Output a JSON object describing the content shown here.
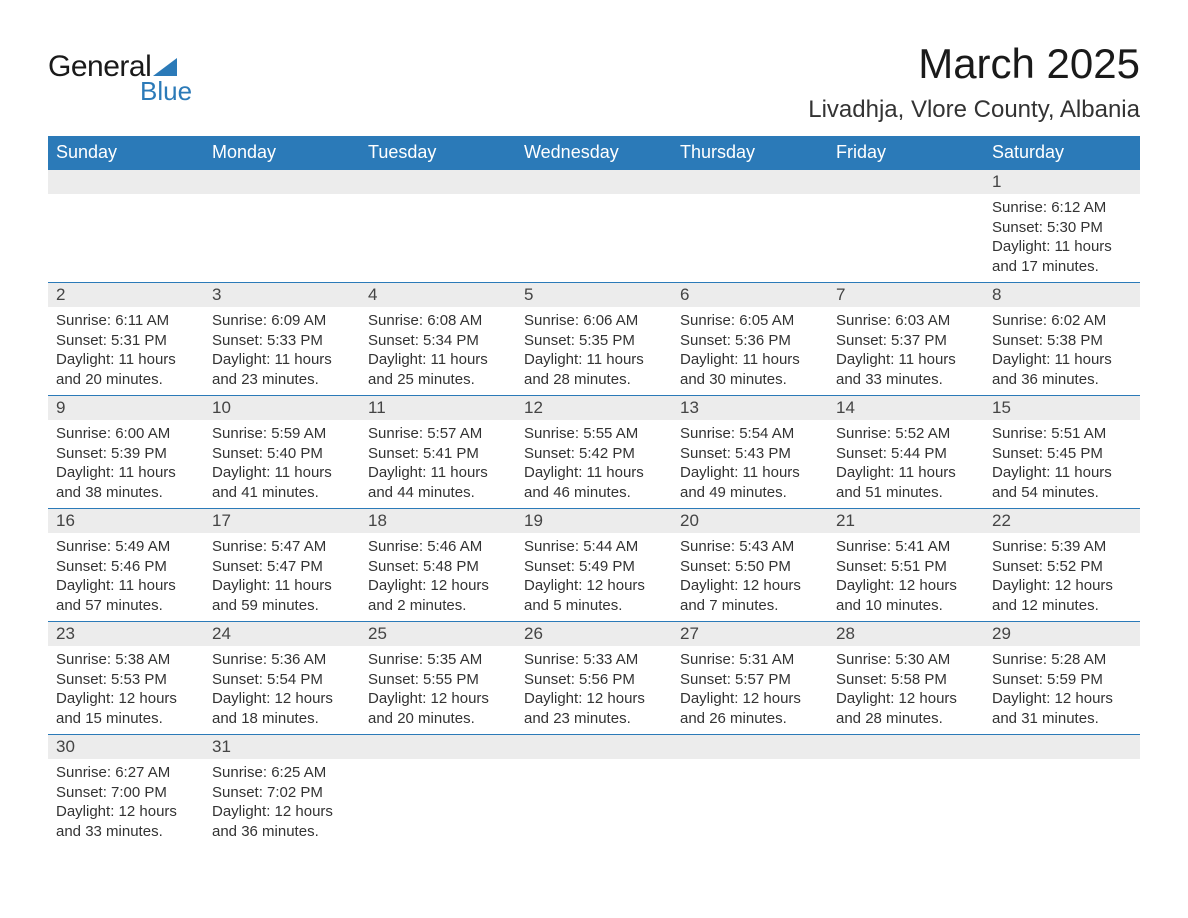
{
  "logo": {
    "text1": "General",
    "text2": "Blue",
    "accent_color": "#2b7ab8"
  },
  "title": "March 2025",
  "location": "Livadhja, Vlore County, Albania",
  "colors": {
    "header_bg": "#2b7ab8",
    "header_fg": "#ffffff",
    "daynum_bg": "#ececec",
    "border": "#2b7ab8",
    "text": "#333333",
    "page_bg": "#ffffff"
  },
  "typography": {
    "title_fontsize": 42,
    "location_fontsize": 24,
    "weekday_fontsize": 18,
    "daynum_fontsize": 17,
    "detail_fontsize": 15
  },
  "layout": {
    "type": "calendar-grid",
    "columns": 7,
    "visible_weeks": 6
  },
  "weekdays": [
    "Sunday",
    "Monday",
    "Tuesday",
    "Wednesday",
    "Thursday",
    "Friday",
    "Saturday"
  ],
  "weeks": [
    [
      null,
      null,
      null,
      null,
      null,
      null,
      {
        "d": "1",
        "sr": "6:12 AM",
        "ss": "5:30 PM",
        "dl": "11 hours and 17 minutes."
      }
    ],
    [
      {
        "d": "2",
        "sr": "6:11 AM",
        "ss": "5:31 PM",
        "dl": "11 hours and 20 minutes."
      },
      {
        "d": "3",
        "sr": "6:09 AM",
        "ss": "5:33 PM",
        "dl": "11 hours and 23 minutes."
      },
      {
        "d": "4",
        "sr": "6:08 AM",
        "ss": "5:34 PM",
        "dl": "11 hours and 25 minutes."
      },
      {
        "d": "5",
        "sr": "6:06 AM",
        "ss": "5:35 PM",
        "dl": "11 hours and 28 minutes."
      },
      {
        "d": "6",
        "sr": "6:05 AM",
        "ss": "5:36 PM",
        "dl": "11 hours and 30 minutes."
      },
      {
        "d": "7",
        "sr": "6:03 AM",
        "ss": "5:37 PM",
        "dl": "11 hours and 33 minutes."
      },
      {
        "d": "8",
        "sr": "6:02 AM",
        "ss": "5:38 PM",
        "dl": "11 hours and 36 minutes."
      }
    ],
    [
      {
        "d": "9",
        "sr": "6:00 AM",
        "ss": "5:39 PM",
        "dl": "11 hours and 38 minutes."
      },
      {
        "d": "10",
        "sr": "5:59 AM",
        "ss": "5:40 PM",
        "dl": "11 hours and 41 minutes."
      },
      {
        "d": "11",
        "sr": "5:57 AM",
        "ss": "5:41 PM",
        "dl": "11 hours and 44 minutes."
      },
      {
        "d": "12",
        "sr": "5:55 AM",
        "ss": "5:42 PM",
        "dl": "11 hours and 46 minutes."
      },
      {
        "d": "13",
        "sr": "5:54 AM",
        "ss": "5:43 PM",
        "dl": "11 hours and 49 minutes."
      },
      {
        "d": "14",
        "sr": "5:52 AM",
        "ss": "5:44 PM",
        "dl": "11 hours and 51 minutes."
      },
      {
        "d": "15",
        "sr": "5:51 AM",
        "ss": "5:45 PM",
        "dl": "11 hours and 54 minutes."
      }
    ],
    [
      {
        "d": "16",
        "sr": "5:49 AM",
        "ss": "5:46 PM",
        "dl": "11 hours and 57 minutes."
      },
      {
        "d": "17",
        "sr": "5:47 AM",
        "ss": "5:47 PM",
        "dl": "11 hours and 59 minutes."
      },
      {
        "d": "18",
        "sr": "5:46 AM",
        "ss": "5:48 PM",
        "dl": "12 hours and 2 minutes."
      },
      {
        "d": "19",
        "sr": "5:44 AM",
        "ss": "5:49 PM",
        "dl": "12 hours and 5 minutes."
      },
      {
        "d": "20",
        "sr": "5:43 AM",
        "ss": "5:50 PM",
        "dl": "12 hours and 7 minutes."
      },
      {
        "d": "21",
        "sr": "5:41 AM",
        "ss": "5:51 PM",
        "dl": "12 hours and 10 minutes."
      },
      {
        "d": "22",
        "sr": "5:39 AM",
        "ss": "5:52 PM",
        "dl": "12 hours and 12 minutes."
      }
    ],
    [
      {
        "d": "23",
        "sr": "5:38 AM",
        "ss": "5:53 PM",
        "dl": "12 hours and 15 minutes."
      },
      {
        "d": "24",
        "sr": "5:36 AM",
        "ss": "5:54 PM",
        "dl": "12 hours and 18 minutes."
      },
      {
        "d": "25",
        "sr": "5:35 AM",
        "ss": "5:55 PM",
        "dl": "12 hours and 20 minutes."
      },
      {
        "d": "26",
        "sr": "5:33 AM",
        "ss": "5:56 PM",
        "dl": "12 hours and 23 minutes."
      },
      {
        "d": "27",
        "sr": "5:31 AM",
        "ss": "5:57 PM",
        "dl": "12 hours and 26 minutes."
      },
      {
        "d": "28",
        "sr": "5:30 AM",
        "ss": "5:58 PM",
        "dl": "12 hours and 28 minutes."
      },
      {
        "d": "29",
        "sr": "5:28 AM",
        "ss": "5:59 PM",
        "dl": "12 hours and 31 minutes."
      }
    ],
    [
      {
        "d": "30",
        "sr": "6:27 AM",
        "ss": "7:00 PM",
        "dl": "12 hours and 33 minutes."
      },
      {
        "d": "31",
        "sr": "6:25 AM",
        "ss": "7:02 PM",
        "dl": "12 hours and 36 minutes."
      },
      null,
      null,
      null,
      null,
      null
    ]
  ],
  "labels": {
    "sunrise": "Sunrise: ",
    "sunset": "Sunset: ",
    "daylight": "Daylight: "
  }
}
